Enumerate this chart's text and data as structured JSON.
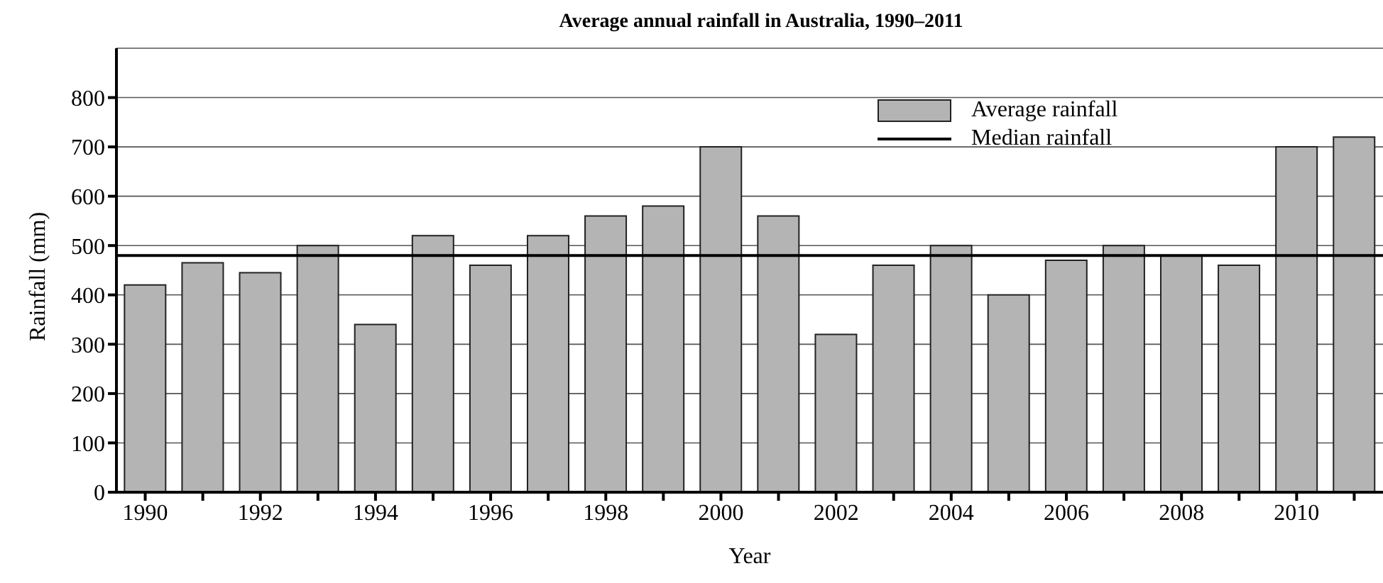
{
  "chart_data": {
    "type": "bar",
    "title": "Average annual rainfall in Australia, 1990–2011",
    "xlabel": "Year",
    "ylabel": "Rainfall (mm)",
    "categories": [
      "1990",
      null,
      "1992",
      null,
      "1994",
      null,
      "1996",
      null,
      "1998",
      null,
      "2000",
      null,
      "2002",
      null,
      "2004",
      null,
      "2006",
      null,
      "2008",
      null,
      "2010",
      null
    ],
    "series": [
      {
        "name": "Average rainfall",
        "color": "#b4b4b4",
        "values": [
          420,
          465,
          445,
          500,
          340,
          520,
          460,
          520,
          560,
          580,
          700,
          560,
          320,
          460,
          500,
          400,
          470,
          500,
          480,
          460,
          700,
          720
        ]
      }
    ],
    "ref_lines": [
      {
        "axis": "y",
        "value": 480,
        "label": "Median rainfall",
        "color": "#000000",
        "line_style": "solid"
      }
    ],
    "ylim": [
      0,
      900
    ],
    "yticks": [
      0,
      100,
      200,
      300,
      400,
      500,
      600,
      700,
      800
    ],
    "grid": "y",
    "legend": "top right"
  }
}
